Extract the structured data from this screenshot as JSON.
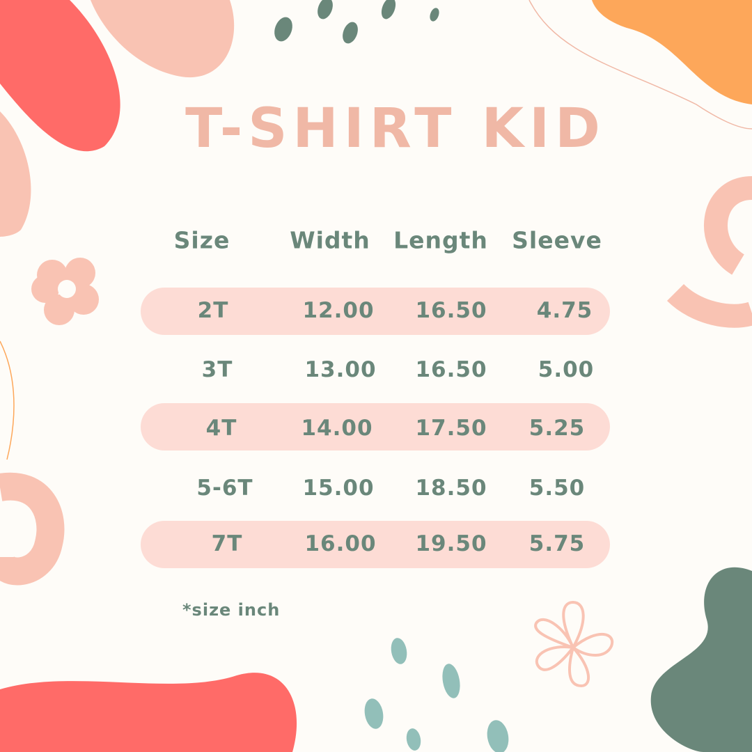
{
  "title": "T-SHIRT KID",
  "colors": {
    "background": "#fefcf8",
    "text": "#6a877a",
    "title": "#f0b8a6",
    "row_highlight": "#fddcd5",
    "coral": "#ff6b68",
    "peach": "#f9c3b3",
    "orange": "#fda75a",
    "green": "#6a877a",
    "teal": "#92bfb9"
  },
  "table": {
    "headers": [
      "Size",
      "Width",
      "Length",
      "Sleeve"
    ],
    "rows": [
      [
        "2T",
        "12.00",
        "16.50",
        "4.75"
      ],
      [
        "3T",
        "13.00",
        "16.50",
        "5.00"
      ],
      [
        "4T",
        "14.00",
        "17.50",
        "5.25"
      ],
      [
        "5-6T",
        "15.00",
        "18.50",
        "5.50"
      ],
      [
        "7T",
        "16.00",
        "19.50",
        "5.75"
      ]
    ]
  },
  "note": "*size inch"
}
